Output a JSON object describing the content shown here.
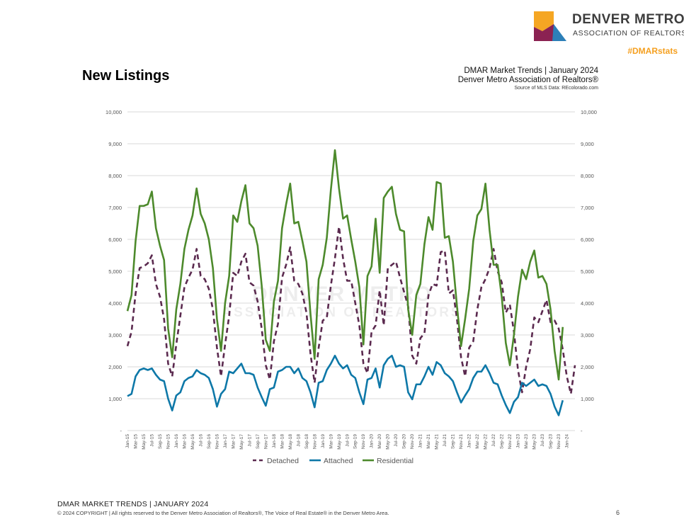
{
  "branding": {
    "logo_line1": "DENVER METRO",
    "logo_line2": "ASSOCIATION OF REALTORS",
    "hashtag": "#DMARstats",
    "colors": {
      "orange": "#f5a623",
      "maroon": "#8b2252",
      "blue": "#2c7fb8",
      "dark": "#3d3d3d"
    }
  },
  "header": {
    "title": "New Listings",
    "report": "DMAR Market Trends | January 2024",
    "org": "Denver Metro Association of Realtors®",
    "source": "Source of MLS Data: REcolorado.com"
  },
  "chart_data": {
    "type": "line",
    "title": "New Listings",
    "ylim": [
      0,
      10000
    ],
    "yticks": [
      "-",
      "1,000",
      "2,000",
      "3,000",
      "4,000",
      "5,000",
      "6,000",
      "7,000",
      "8,000",
      "9,000",
      "10,000"
    ],
    "x_tick_labels": [
      "Jan-15",
      "Mar-15",
      "May-15",
      "Jul-15",
      "Sep-15",
      "Nov-15",
      "Jan-16",
      "Mar-16",
      "May-16",
      "Jul-16",
      "Sep-16",
      "Nov-16",
      "Jan-17",
      "Mar-17",
      "May-17",
      "Jul-17",
      "Sep-17",
      "Nov-17",
      "Jan-18",
      "Mar-18",
      "May-18",
      "Jul-18",
      "Sep-18",
      "Nov-18",
      "Jan-19",
      "Mar-19",
      "May-19",
      "Jul-19",
      "Sep-19",
      "Nov-19",
      "Jan-20",
      "Mar-20",
      "May-20",
      "Jul-20",
      "Sep-20",
      "Nov-20",
      "Jan-21",
      "Mar-21",
      "May-21",
      "Jul-21",
      "Sep-21",
      "Nov-21",
      "Jan-22",
      "Mar-22",
      "May-22",
      "Jul-22",
      "Sep-22",
      "Nov-22",
      "Jan-23",
      "Mar-23",
      "May-23",
      "Jul-23",
      "Sep-23",
      "Nov-23",
      "Jan-24"
    ],
    "series": [
      {
        "name": "Detached",
        "color": "#5b2a4f",
        "dash": true,
        "values": [
          2650,
          3100,
          4300,
          5100,
          5150,
          5250,
          5500,
          4600,
          4200,
          3500,
          2100,
          1700,
          2700,
          3600,
          4500,
          4800,
          5050,
          5700,
          4850,
          4750,
          4450,
          3800,
          2600,
          1700,
          2700,
          3600,
          4950,
          4850,
          5300,
          5550,
          4650,
          4550,
          4050,
          3200,
          2050,
          1600,
          2800,
          3350,
          4800,
          5200,
          5750,
          4700,
          4600,
          4300,
          3700,
          2400,
          1500,
          2600,
          3450,
          3550,
          4550,
          5400,
          6400,
          5400,
          4700,
          4700,
          4000,
          3300,
          2100,
          1800,
          3100,
          3300,
          4400,
          3300,
          5100,
          5200,
          5300,
          4800,
          4350,
          3900,
          2350,
          2100,
          2900,
          3050,
          4250,
          4600,
          4550,
          5600,
          5650,
          4300,
          4400,
          3500,
          2300,
          1700,
          2600,
          2800,
          3800,
          4500,
          4750,
          5100,
          5700,
          5000,
          4650,
          3700,
          3950,
          3100,
          1900,
          1200,
          2000,
          2550,
          3550,
          3400,
          3750,
          4100,
          3400,
          3450,
          3200,
          2550,
          1700,
          1150,
          2050
        ]
      },
      {
        "name": "Attached",
        "color": "#0e78a8",
        "dash": false,
        "values": [
          1080,
          1150,
          1700,
          1900,
          1950,
          1900,
          1950,
          1750,
          1600,
          1550,
          1000,
          630,
          1100,
          1200,
          1550,
          1650,
          1700,
          1900,
          1800,
          1750,
          1650,
          1300,
          750,
          1150,
          1300,
          1850,
          1800,
          1950,
          2100,
          1800,
          1800,
          1750,
          1350,
          1050,
          780,
          1300,
          1350,
          1850,
          1900,
          2000,
          2000,
          1800,
          1950,
          1650,
          1550,
          1200,
          730,
          1500,
          1550,
          1900,
          2100,
          2350,
          2100,
          1950,
          2050,
          1750,
          1650,
          1200,
          830,
          1600,
          1650,
          1950,
          1350,
          2050,
          2250,
          2350,
          2000,
          2050,
          2000,
          1200,
          980,
          1450,
          1450,
          1700,
          2000,
          1750,
          2150,
          2050,
          1800,
          1700,
          1550,
          1200,
          880,
          1100,
          1300,
          1650,
          1850,
          1850,
          2050,
          1800,
          1500,
          1450,
          1100,
          800,
          550,
          900,
          1050,
          1500,
          1400,
          1500,
          1600,
          1400,
          1450,
          1400,
          1150,
          750,
          480,
          950
        ]
      },
      {
        "name": "Residential",
        "color": "#4d8a2c",
        "dash": false,
        "values": [
          3750,
          4250,
          5950,
          7050,
          7050,
          7100,
          7500,
          6350,
          5800,
          5350,
          3200,
          2300,
          3800,
          4600,
          5700,
          6300,
          6750,
          7600,
          6800,
          6500,
          6000,
          5100,
          3500,
          2500,
          4000,
          4850,
          6750,
          6550,
          7200,
          7700,
          6500,
          6350,
          5800,
          4550,
          2850,
          2500,
          4050,
          4700,
          6350,
          7100,
          7750,
          6500,
          6550,
          5950,
          5300,
          3650,
          2250,
          4750,
          5200,
          6050,
          7550,
          8800,
          7600,
          6650,
          6750,
          6000,
          5300,
          4500,
          2700,
          4850,
          5150,
          6650,
          4950,
          7300,
          7500,
          7650,
          6800,
          6300,
          6250,
          3800,
          3000,
          4250,
          4600,
          5850,
          6700,
          6300,
          7800,
          7750,
          6050,
          6100,
          5300,
          3900,
          2650,
          3500,
          4450,
          5950,
          6750,
          6950,
          7750,
          6300,
          5200,
          5200,
          4200,
          2750,
          2050,
          3000,
          4200,
          5050,
          4750,
          5300,
          5650,
          4800,
          4850,
          4600,
          3800,
          2500,
          1600,
          3250
        ]
      }
    ],
    "legend": [
      "Detached",
      "Attached",
      "Residential"
    ],
    "legend_position": "bottom",
    "watermark_text": [
      "DENVER METRO",
      "ASSOCIATION OF REALTORS"
    ]
  },
  "footer": {
    "title": "DMAR MARKET TRENDS | JANUARY 2024",
    "copyright": "© 2024 COPYRIGHT | All rights reserved to the Denver Metro Association of Realtors®, The Voice of Real Estate® in the Denver Metro Area.",
    "page": "6"
  }
}
